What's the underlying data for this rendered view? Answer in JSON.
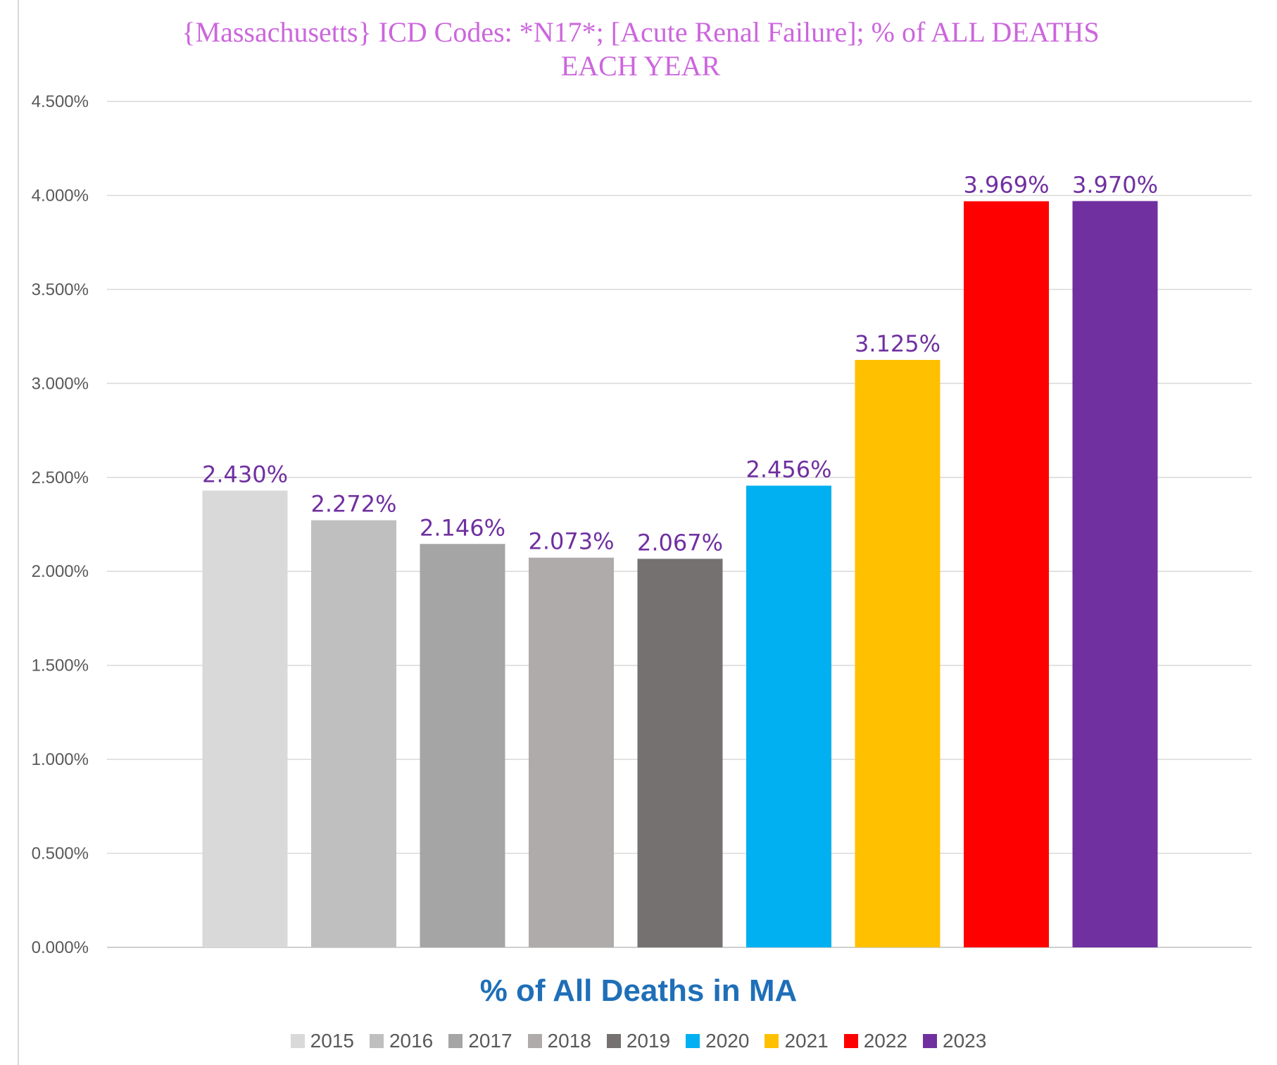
{
  "chart_data": {
    "type": "bar",
    "title": "{Massachusetts}  ICD Codes: *N17*;  [Acute Renal Failure]; % of ALL DEATHS EACH YEAR",
    "title_lines": [
      "{Massachusetts}  ICD Codes: *N17*;  [Acute Renal Failure]; % of ALL DEATHS",
      "EACH YEAR"
    ],
    "xlabel": "% of All Deaths in MA",
    "ylabel": "",
    "ylim": [
      0,
      4.5
    ],
    "yticks": [
      0,
      0.5,
      1.0,
      1.5,
      2.0,
      2.5,
      3.0,
      3.5,
      4.0,
      4.5
    ],
    "ytick_labels": [
      "0.000%",
      "0.500%",
      "1.000%",
      "1.500%",
      "2.000%",
      "2.500%",
      "3.000%",
      "3.500%",
      "4.000%",
      "4.500%"
    ],
    "grid": true,
    "legend_position": "bottom",
    "categories": [
      "2015",
      "2016",
      "2017",
      "2018",
      "2019",
      "2020",
      "2021",
      "2022",
      "2023"
    ],
    "values": [
      2.43,
      2.272,
      2.146,
      2.073,
      2.067,
      2.456,
      3.125,
      3.969,
      3.97
    ],
    "data_labels": [
      "2.430%",
      "2.272%",
      "2.146%",
      "2.073%",
      "2.067%",
      "2.456%",
      "3.125%",
      "3.969%",
      "3.970%"
    ],
    "colors": [
      "#d9d9d9",
      "#bfbfbf",
      "#a5a5a5",
      "#afabab",
      "#767171",
      "#00b0f0",
      "#ffc000",
      "#ff0000",
      "#7030a0"
    ]
  }
}
